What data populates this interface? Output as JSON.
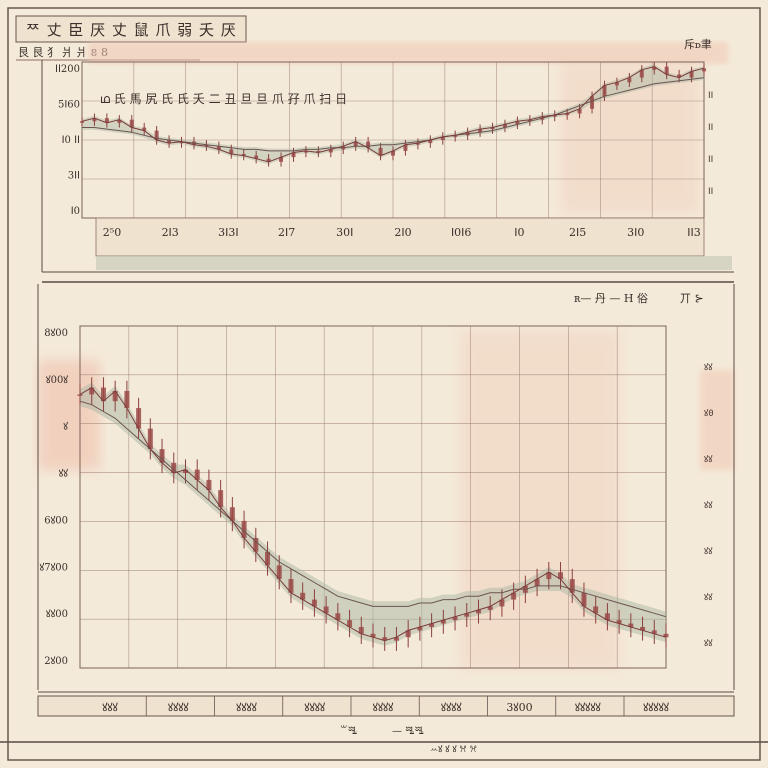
{
  "header": {
    "title": "ᄍ 丈 臣 厌 丈 鼠 爪 弱 夭 厌",
    "subtitle": "艮 艮 犭 爿 爿 ខ 8"
  },
  "top_panel": {
    "legend_text": "ഥ 氏 馬 尻 氏 氏 夭 二 丑 旦 旦 爪 孖 爪 扫 日",
    "corner_label": "斥ꭰ聿"
  },
  "bottom_panel": {
    "side_note": "ʀ— 丹 — H 俗",
    "corner_label": "丌 ⊱"
  },
  "footer": {
    "caption_left": "꒳ꗆ",
    "caption_mid": "— ꗆꗆ",
    "caption_bottom": "ꕀꙋ ꙋ ꙋ ꕮ ꕮ"
  },
  "colors": {
    "paper": "#f4ead9",
    "grid": "#8f6f64",
    "candle": "#9a4a48",
    "band": "#a9b8a4",
    "highlight": "#f1c6b3"
  },
  "chart_data": [
    {
      "type": "line",
      "title": "",
      "x_tick_labels": [
        "2⁵0",
        "2ꓲ3",
        "3ꓲ3ꓲ",
        "2ꓲ7",
        "30ꓲ",
        "2ꓲ0",
        "ꓲ0ꓲ6",
        "ꓲ0",
        "2ꓲ5",
        "3ꓲ0",
        "ꓲꓲ3"
      ],
      "y_tick_labels": [
        "ꓲꓲ200",
        "5ꓲ60",
        "ꓲ0 ꓲꓲ",
        "3ꓲꓲ",
        "ꓲ0"
      ],
      "right_tick_labels": [
        "ꓲꓲ",
        "ꓲꓲ",
        "ꓲꓲ",
        "ꓲꓲ"
      ],
      "ylim": [
        0,
        100
      ],
      "x": [
        0,
        2,
        4,
        6,
        8,
        10,
        12,
        14,
        16,
        18,
        20,
        22,
        24,
        26,
        28,
        30,
        32,
        34,
        36,
        38,
        40,
        42,
        44,
        46,
        48,
        50,
        52,
        54,
        56,
        58,
        60,
        62,
        64,
        66,
        68,
        70,
        72,
        74,
        76,
        78,
        80,
        82,
        84,
        86,
        88,
        90,
        92,
        94,
        96,
        98,
        100
      ],
      "series": [
        {
          "values": [
            62,
            64,
            61,
            63,
            58,
            56,
            50,
            48,
            49,
            47,
            46,
            44,
            41,
            40,
            38,
            36,
            39,
            42,
            43,
            42,
            44,
            46,
            49,
            45,
            40,
            43,
            47,
            48,
            50,
            52,
            53,
            55,
            57,
            58,
            60,
            62,
            63,
            65,
            66,
            67,
            70,
            78,
            85,
            87,
            90,
            95,
            97,
            92,
            90,
            94,
            96
          ]
        },
        {
          "values": [
            58,
            58,
            57,
            56,
            55,
            53,
            51,
            50,
            49,
            48,
            47,
            46,
            45,
            44,
            44,
            43,
            43,
            43,
            44,
            44,
            45,
            45,
            46,
            46,
            47,
            47,
            48,
            49,
            50,
            52,
            53,
            54,
            55,
            56,
            58,
            60,
            62,
            64,
            66,
            69,
            72,
            75,
            78,
            80,
            82,
            84,
            86,
            87,
            88,
            89,
            90
          ]
        }
      ]
    },
    {
      "type": "line",
      "title": "",
      "x_tick_labels": [
        "ꙋꙋꙋ",
        "ꙋꙋꙋꙋ",
        "ꙋꙋꙋꙋ",
        "ꙋꙋꙋꙋ",
        "ꙋꙋꙋꙋ",
        "ꙋꙋꙋꙋ",
        "3ꙋ00",
        "ꙋꙋꙋꙋꙋ",
        "ꙋꙋꙋꙋꙋ"
      ],
      "y_tick_labels": [
        "8ꙋ00",
        "ꙋ00ꙋ",
        "ꙋ",
        "ꙋꙋ",
        "6ꙋ00",
        "ꙋ7ꙋ00",
        "ꙋꙋ00",
        "2ꙋ00"
      ],
      "right_tick_labels": [
        "ꙋꙋ",
        "ꙋ0",
        "ꙋꙋ",
        "ꙋꙋ",
        "ꙋꙋ",
        "ꙋꙋ",
        "ꙋꙋ"
      ],
      "ylim": [
        0,
        100
      ],
      "x": [
        0,
        2,
        4,
        6,
        8,
        10,
        12,
        14,
        16,
        18,
        20,
        22,
        24,
        26,
        28,
        30,
        32,
        34,
        36,
        38,
        40,
        42,
        44,
        46,
        48,
        50,
        52,
        54,
        56,
        58,
        60,
        62,
        64,
        66,
        68,
        70,
        72,
        74,
        76,
        78,
        80,
        82,
        84,
        86,
        88,
        90,
        92,
        94,
        96,
        98,
        100
      ],
      "series": [
        {
          "values": [
            80,
            82,
            78,
            81,
            76,
            70,
            64,
            60,
            57,
            58,
            55,
            52,
            47,
            43,
            38,
            34,
            30,
            26,
            22,
            20,
            18,
            16,
            14,
            12,
            10,
            9,
            8,
            9,
            11,
            12,
            13,
            14,
            15,
            16,
            17,
            18,
            20,
            22,
            24,
            26,
            28,
            26,
            22,
            18,
            16,
            14,
            13,
            12,
            11,
            10,
            9
          ]
        },
        {
          "values": [
            78,
            77,
            75,
            73,
            70,
            67,
            64,
            61,
            58,
            55,
            52,
            49,
            46,
            43,
            40,
            37,
            34,
            31,
            29,
            27,
            25,
            23,
            21,
            20,
            19,
            18,
            18,
            18,
            18,
            19,
            19,
            20,
            20,
            21,
            21,
            22,
            22,
            23,
            23,
            24,
            24,
            24,
            23,
            22,
            21,
            20,
            19,
            18,
            17,
            16,
            15
          ]
        }
      ]
    }
  ]
}
